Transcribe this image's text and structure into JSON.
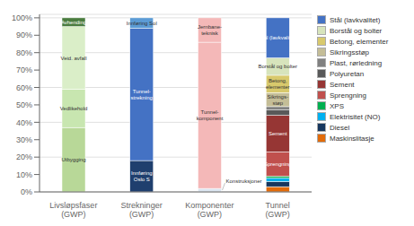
{
  "chart_data": {
    "type": "bar",
    "stacked": true,
    "grid": true,
    "legend": "right",
    "categories": [
      "Livsløpsfaser (GWP)",
      "Strekninger (GWP)",
      "Komponenter (GWP)",
      "Tunnel (GWP)"
    ],
    "ylim": [
      0,
      102
    ],
    "yticks": [
      {
        "value": 0,
        "label": "0%"
      },
      {
        "value": 10,
        "label": "10%"
      },
      {
        "value": 20,
        "label": "20%"
      },
      {
        "value": 30,
        "label": "30%"
      },
      {
        "value": 40,
        "label": "40%"
      },
      {
        "value": 50,
        "label": "50%"
      },
      {
        "value": 60,
        "label": "60%"
      },
      {
        "value": 70,
        "label": "70%"
      },
      {
        "value": 80,
        "label": "80%"
      },
      {
        "value": 90,
        "label": "90%"
      },
      {
        "value": 100,
        "label": "100%"
      }
    ],
    "series": [
      {
        "label": "Utbygging",
        "color": "#b8d898",
        "values": [
          37,
          null,
          null,
          null
        ]
      },
      {
        "label": "Vedlikehold",
        "color": "#c8e6b0",
        "values": [
          22,
          null,
          null,
          null
        ]
      },
      {
        "label": "Veid. avfall",
        "color": "#daeec8",
        "values": [
          36,
          null,
          null,
          null
        ]
      },
      {
        "label": "Avhending",
        "color": "#4a7c3f",
        "values": [
          5,
          null,
          null,
          null
        ]
      },
      {
        "label": "Innføring\nOslo S",
        "color": "#1f3f6e",
        "values": [
          null,
          18,
          null,
          null
        ]
      },
      {
        "label": "Tunnel-\nstrekning",
        "color": "#4472c4",
        "values": [
          null,
          76,
          null,
          null
        ]
      },
      {
        "label": "Innføring Sol",
        "color": "#5b9bd5",
        "values": [
          null,
          6,
          null,
          null
        ]
      },
      {
        "label": "Konstruksjoner",
        "color": "#dce6f1",
        "values": [
          null,
          null,
          2,
          null
        ]
      },
      {
        "label": "Tunnel-\nkomponent",
        "color": "#f4b8b8",
        "values": [
          null,
          null,
          84,
          null
        ]
      },
      {
        "label": "Jernbane-\nteknisk",
        "color": "#f4b8b8",
        "values": [
          null,
          null,
          14,
          null
        ]
      },
      {
        "name": "Maskinslitasje",
        "color": "#e26b0a",
        "values": [
          null,
          null,
          null,
          3
        ]
      },
      {
        "name": "Diesel",
        "color": "#17375e",
        "values": [
          null,
          null,
          null,
          3
        ]
      },
      {
        "name": "Elektrisitet (NO)",
        "color": "#00b0f0",
        "values": [
          null,
          null,
          null,
          2
        ]
      },
      {
        "name": "XPS",
        "color": "#00b050",
        "values": [
          null,
          null,
          null,
          1
        ]
      },
      {
        "name": "Sprengning",
        "label": "Sprengning",
        "color": "#c0504d",
        "values": [
          null,
          null,
          null,
          14
        ]
      },
      {
        "name": "Sement",
        "label": "Sement",
        "color": "#963634",
        "values": [
          null,
          null,
          null,
          21
        ]
      },
      {
        "name": "Polyuretan",
        "color": "#595959",
        "values": [
          null,
          null,
          null,
          3
        ]
      },
      {
        "name": "Plast, rørledning",
        "color": "#808080",
        "values": [
          null,
          null,
          null,
          2
        ]
      },
      {
        "name": "Sikringsstøp",
        "label": "Sikrings-\nstøp",
        "color": "#c4bd97",
        "values": [
          null,
          null,
          null,
          8
        ]
      },
      {
        "name": "Betong, elementer",
        "label": "Betong,\nelementer",
        "color": "#d8c96c",
        "values": [
          null,
          null,
          null,
          10
        ]
      },
      {
        "name": "Borstål og bolter",
        "label": "Borstål og bolter",
        "color": "#d7e4bc",
        "values": [
          null,
          null,
          null,
          10
        ]
      },
      {
        "name": "Stål (lavkvalitet)",
        "label": "Stål (lavkvalitet)",
        "color": "#4472c4",
        "values": [
          null,
          null,
          null,
          23
        ]
      }
    ]
  }
}
